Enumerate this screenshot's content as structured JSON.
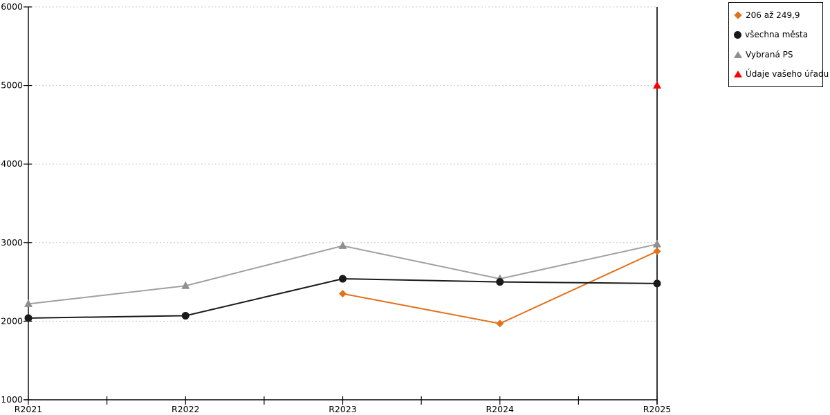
{
  "chart_data": {
    "type": "line",
    "title": "",
    "xlabel": "",
    "ylabel": "",
    "categories": [
      "R2021",
      "R2022",
      "R2023",
      "R2024",
      "R2025"
    ],
    "series": [
      {
        "name": "206 až 249,9",
        "color": "#E2711C",
        "marker": "diamond",
        "line": true,
        "values": [
          null,
          null,
          2350,
          1970,
          2890
        ]
      },
      {
        "name": "všechna města",
        "color": "#1A1A1A",
        "marker": "circle",
        "line": true,
        "values": [
          2040,
          2070,
          2540,
          2500,
          2480
        ]
      },
      {
        "name": "Vybraná PS",
        "color": "#8F8F8F",
        "line_color": "#A0A0A0",
        "marker": "triangle",
        "line": true,
        "values": [
          2220,
          2450,
          2960,
          2540,
          2980
        ]
      },
      {
        "name": "Údaje vašeho úřadu",
        "color": "#FF0000",
        "marker": "triangle",
        "line": false,
        "values": [
          null,
          null,
          null,
          null,
          5000
        ]
      }
    ],
    "ylim": [
      1000,
      6000
    ],
    "ytick_step": 1000,
    "ytick_labels": [
      "1000",
      "2000",
      "3000",
      "4000",
      "5000",
      "6000"
    ],
    "grid": "horizontal-dotted",
    "grid_color": "#C8C8C8",
    "axis_color": "#000000",
    "legend_position": "top-right",
    "highlight_category": "R2025"
  }
}
